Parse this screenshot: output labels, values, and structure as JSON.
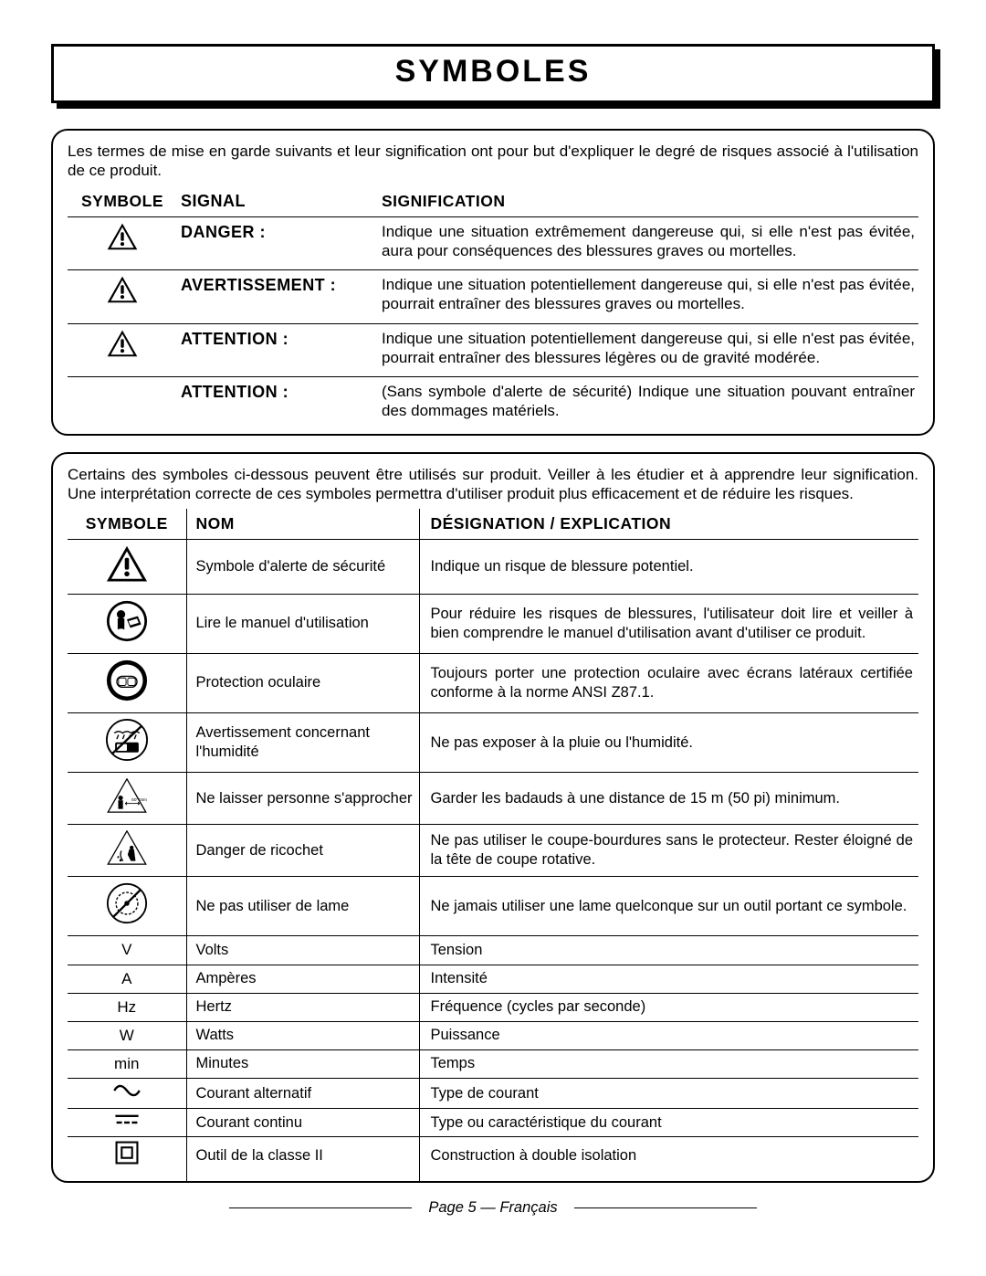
{
  "title": "SYMBOLES",
  "box1": {
    "intro": "Les termes de mise en garde suivants et leur signification ont pour but d'expliquer le degré de risques associé à l'utilisation de ce produit.",
    "head": {
      "c1": "SYMBOLE",
      "c2": "SIGNAL",
      "c3": "SIGNIFICATION"
    },
    "rows": [
      {
        "icon": "warn",
        "signal": "DANGER :",
        "meaning": "Indique une situation extrêmement dangereuse qui, si elle n'est pas évitée, aura pour conséquences des blessures graves ou mortelles."
      },
      {
        "icon": "warn",
        "signal": "AVERTISSEMENT :",
        "meaning": "Indique une situation potentiellement dangereuse qui, si elle n'est pas évitée, pourrait entraîner des blessures graves ou mortelles."
      },
      {
        "icon": "warn",
        "signal": "ATTENTION :",
        "meaning": "Indique une situation potentiellement dangereuse qui, si elle n'est pas évitée, pourrait entraîner des blessures légères ou de gravité modérée."
      },
      {
        "icon": "",
        "signal": "ATTENTION :",
        "meaning": "(Sans symbole d'alerte de sécurité) Indique une situation pouvant entraîner des dommages matériels."
      }
    ]
  },
  "box2": {
    "intro": "Certains des symboles ci-dessous peuvent être utilisés sur produit. Veiller à les étudier et à apprendre leur signification. Une interprétation correcte de ces symboles permettra d'utiliser produit plus efficacement et de réduire les risques.",
    "head": {
      "c1": "SYMBOLE",
      "c2": "NOM",
      "c3": "DÉSIGNATION / EXPLICATION"
    },
    "rows": [
      {
        "icon": "warn-solid",
        "name": "Symbole d'alerte de sécurité",
        "desc": "Indique un risque de blessure potentiel."
      },
      {
        "icon": "manual",
        "name": "Lire le manuel d'utilisation",
        "desc": "Pour réduire les risques de blessures, l'utilisateur doit lire et veiller à bien comprendre le manuel d'utilisation avant d'utiliser ce produit."
      },
      {
        "icon": "eye",
        "name": "Protection oculaire",
        "desc": "Toujours porter une protection oculaire avec écrans latéraux certifiée conforme à la norme ANSI Z87.1."
      },
      {
        "icon": "wet",
        "name": "Avertissement concernant l'humidité",
        "desc": "Ne pas exposer à la pluie ou l'humidité."
      },
      {
        "icon": "bystander",
        "name": "Ne laisser personne s'approcher",
        "desc": "Garder les badauds à une distance de 15 m (50 pi) minimum."
      },
      {
        "icon": "ricochet",
        "name": "Danger de ricochet",
        "desc": "Ne pas utiliser le coupe-bourdures sans le protecteur. Rester éloigné de la tête de coupe rotative."
      },
      {
        "icon": "noblade",
        "name": "Ne pas utiliser de lame",
        "desc": "Ne jamais utiliser une lame quelconque sur un outil portant ce symbole."
      },
      {
        "icon": "txt",
        "txt": "V",
        "name": "Volts",
        "desc": "Tension",
        "short": true
      },
      {
        "icon": "txt",
        "txt": "A",
        "name": "Ampères",
        "desc": "Intensité",
        "short": true
      },
      {
        "icon": "txt",
        "txt": "Hz",
        "name": "Hertz",
        "desc": "Fréquence (cycles par seconde)",
        "short": true
      },
      {
        "icon": "txt",
        "txt": "W",
        "name": "Watts",
        "desc": "Puissance",
        "short": true
      },
      {
        "icon": "txt",
        "txt": "min",
        "name": "Minutes",
        "desc": "Temps",
        "short": true
      },
      {
        "icon": "ac",
        "name": "Courant alternatif",
        "desc": "Type de courant",
        "short": true
      },
      {
        "icon": "dc",
        "name": "Courant continu",
        "desc": "Type ou caractéristique du courant",
        "short": true
      },
      {
        "icon": "class2",
        "name": "Outil de la classe II",
        "desc": "Construction à double isolation",
        "short": true
      }
    ]
  },
  "footer": "Page 5 — Français"
}
